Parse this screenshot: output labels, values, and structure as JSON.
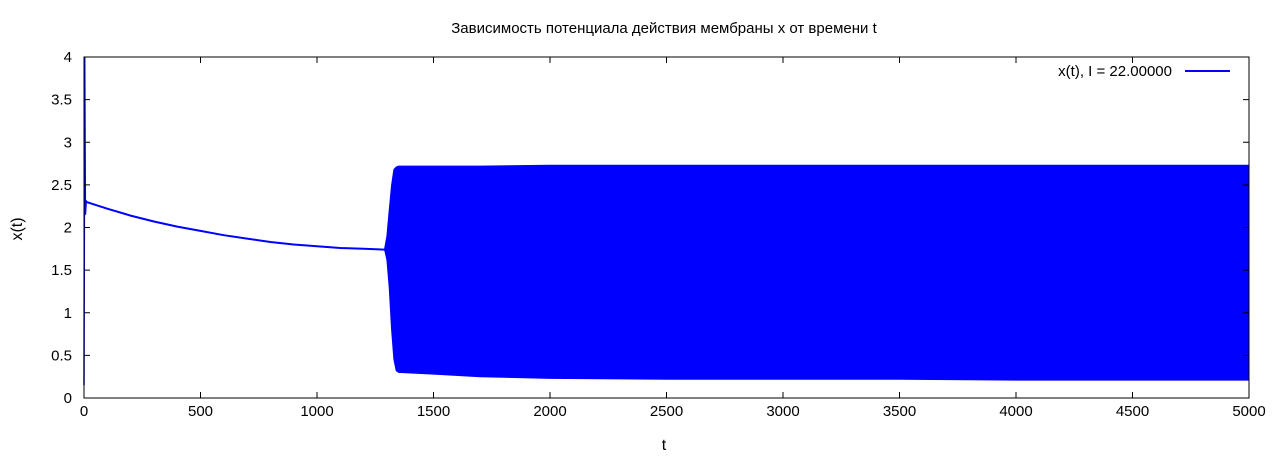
{
  "chart_data": {
    "type": "line",
    "title": "Зависимость потенциала действия мембраны x от времени t",
    "xlabel": "t",
    "ylabel": "x(t)",
    "xlim": [
      0,
      5000
    ],
    "ylim": [
      0,
      4
    ],
    "x_ticks": [
      "0",
      "500",
      "1000",
      "1500",
      "2000",
      "2500",
      "3000",
      "3500",
      "4000",
      "4500",
      "5000"
    ],
    "y_ticks": [
      "0",
      "0.5",
      "1",
      "1.5",
      "2",
      "2.5",
      "3",
      "3.5",
      "4"
    ],
    "grid": false,
    "legend_position": "top-right",
    "series": [
      {
        "name": "x(t), I = 22.00000",
        "color": "#0000ff",
        "initial_spike": {
          "x": [
            0,
            3,
            6,
            10
          ],
          "y": [
            0.15,
            4.0,
            2.15,
            2.32
          ]
        },
        "decay_x": [
          10,
          100,
          200,
          300,
          400,
          500,
          600,
          700,
          800,
          900,
          1000,
          1100,
          1200,
          1300
        ],
        "decay_y": [
          2.3,
          2.22,
          2.14,
          2.07,
          2.01,
          1.96,
          1.91,
          1.87,
          1.83,
          1.8,
          1.78,
          1.76,
          1.75,
          1.74
        ],
        "envelope_x": [
          1290,
          1300,
          1310,
          1320,
          1330,
          1340,
          1350,
          1500,
          1700,
          2000,
          2500,
          3000,
          3500,
          4000,
          4500,
          5000
        ],
        "envelope_upper": [
          1.75,
          1.9,
          2.2,
          2.5,
          2.68,
          2.71,
          2.72,
          2.72,
          2.72,
          2.73,
          2.73,
          2.73,
          2.73,
          2.73,
          2.73,
          2.73
        ],
        "envelope_lower": [
          1.74,
          1.62,
          1.3,
          0.8,
          0.45,
          0.32,
          0.3,
          0.28,
          0.25,
          0.23,
          0.22,
          0.22,
          0.22,
          0.21,
          0.21,
          0.21
        ]
      }
    ]
  }
}
